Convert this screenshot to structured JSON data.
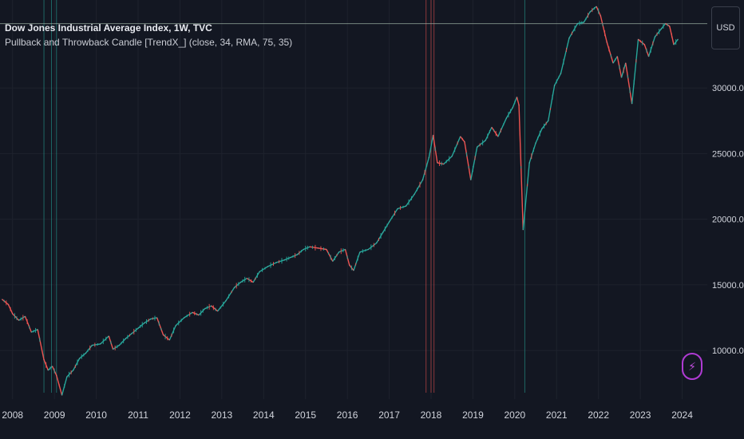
{
  "header": {
    "symbol_title": "Dow Jones Industrial Average Index, 1W, TVC",
    "indicator_label": "Pullback and Throwback Candle [TrendX_] (close, 34, RMA, 75, 35)"
  },
  "currency": {
    "label": "USD"
  },
  "colors": {
    "background": "#131722",
    "grid": "#1e222d",
    "bull": "#26a69a",
    "bear": "#ef5350",
    "text": "#d1d4dc",
    "price_line": "#9fb4a6",
    "accent": "#b03bd4"
  },
  "icons": {
    "replay": "lightning-bolt-icon"
  },
  "chart_data": {
    "type": "line",
    "title": "Dow Jones Industrial Average Index, 1W, TVC",
    "xlabel": "",
    "ylabel": "",
    "x_ticks": [
      "2008",
      "2009",
      "2010",
      "2011",
      "2012",
      "2013",
      "2014",
      "2015",
      "2016",
      "2017",
      "2018",
      "2019",
      "2020",
      "2021",
      "2022",
      "2023",
      "2024"
    ],
    "y_ticks": [
      "10000.00",
      "15000.00",
      "20000.00",
      "25000.00",
      "30000.00"
    ],
    "y_tick_values": [
      10000,
      15000,
      20000,
      25000,
      30000
    ],
    "xlim": [
      2007.7,
      2024.6
    ],
    "ylim": [
      6300,
      36700
    ],
    "grid": true,
    "series": [
      {
        "x": [
          2007.75,
          2007.9,
          2008.0,
          2008.15,
          2008.3,
          2008.45,
          2008.6,
          2008.75,
          2008.85,
          2008.95,
          2009.05,
          2009.18,
          2009.3,
          2009.45,
          2009.6,
          2009.75,
          2009.9,
          2010.1,
          2010.3,
          2010.4,
          2010.55,
          2010.7,
          2010.85,
          2011.0,
          2011.15,
          2011.3,
          2011.45,
          2011.6,
          2011.75,
          2011.9,
          2012.1,
          2012.3,
          2012.45,
          2012.6,
          2012.75,
          2012.9,
          2013.1,
          2013.3,
          2013.45,
          2013.6,
          2013.75,
          2013.9,
          2014.1,
          2014.3,
          2014.5,
          2014.65,
          2014.8,
          2014.95,
          2015.1,
          2015.3,
          2015.5,
          2015.65,
          2015.8,
          2015.95,
          2016.05,
          2016.15,
          2016.3,
          2016.5,
          2016.7,
          2016.85,
          2017.0,
          2017.2,
          2017.4,
          2017.6,
          2017.8,
          2017.95,
          2018.05,
          2018.15,
          2018.3,
          2018.5,
          2018.7,
          2018.8,
          2018.95,
          2019.1,
          2019.3,
          2019.45,
          2019.6,
          2019.8,
          2019.95,
          2020.05,
          2020.1,
          2020.2,
          2020.35,
          2020.5,
          2020.65,
          2020.8,
          2020.95,
          2021.1,
          2021.3,
          2021.5,
          2021.65,
          2021.8,
          2021.95,
          2022.05,
          2022.2,
          2022.35,
          2022.45,
          2022.55,
          2022.65,
          2022.8,
          2022.95,
          2023.1,
          2023.2,
          2023.35,
          2023.5,
          2023.6,
          2023.7,
          2023.8,
          2023.9
        ],
        "values": [
          13900,
          13500,
          12800,
          12300,
          12600,
          11400,
          11600,
          9300,
          8500,
          8800,
          8100,
          6600,
          8000,
          8500,
          9400,
          9800,
          10400,
          10500,
          11100,
          10100,
          10400,
          10900,
          11300,
          11700,
          12100,
          12400,
          12500,
          11200,
          10800,
          11900,
          12500,
          12900,
          12700,
          13200,
          13400,
          13000,
          13800,
          14800,
          15200,
          15500,
          15200,
          16000,
          16400,
          16700,
          16900,
          17100,
          17300,
          17700,
          17900,
          17800,
          17700,
          16800,
          17500,
          17700,
          16500,
          16100,
          17500,
          17700,
          18200,
          19000,
          19800,
          20800,
          21000,
          21900,
          23000,
          24700,
          26400,
          24300,
          24200,
          24800,
          26300,
          25900,
          23000,
          25500,
          26000,
          27000,
          26300,
          27700,
          28500,
          29300,
          28700,
          19200,
          24300,
          25800,
          26900,
          27500,
          30200,
          31100,
          33800,
          34900,
          35000,
          35800,
          36200,
          35500,
          33500,
          31900,
          32400,
          30800,
          31900,
          28800,
          33700,
          33300,
          32400,
          33900,
          34500,
          34900,
          34700,
          33300,
          33700
        ]
      }
    ],
    "vertical_markers": [
      {
        "x": 2008.75,
        "color": "bull"
      },
      {
        "x": 2008.93,
        "color": "bull"
      },
      {
        "x": 2009.05,
        "color": "bull"
      },
      {
        "x": 2017.88,
        "color": "bear"
      },
      {
        "x": 2018.0,
        "color": "bear"
      },
      {
        "x": 2018.07,
        "color": "bear"
      },
      {
        "x": 2020.24,
        "color": "bull"
      }
    ],
    "reference_line": {
      "value": 34900
    }
  }
}
